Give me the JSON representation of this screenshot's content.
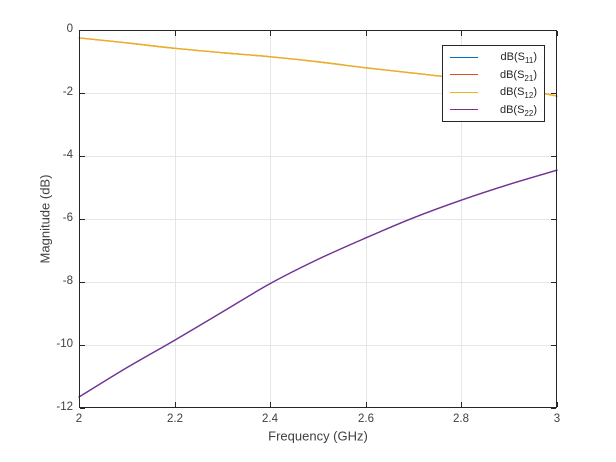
{
  "figure": {
    "background_color": "#ffffff"
  },
  "axes": {
    "xlabel": "Frequency (GHz)",
    "ylabel": "Magnitude (dB)",
    "xlim": [
      2,
      3
    ],
    "ylim": [
      -12,
      0
    ],
    "xticks": [
      2,
      2.2,
      2.4,
      2.6,
      2.8,
      3
    ],
    "xtick_labels": [
      "2",
      "2.2",
      "2.4",
      "2.6",
      "2.8",
      "3"
    ],
    "yticks": [
      0,
      -2,
      -4,
      -6,
      -8,
      -10,
      -12
    ],
    "ytick_labels": [
      "0",
      "-2",
      "-4",
      "-6",
      "-8",
      "-10",
      "-12"
    ],
    "grid": true,
    "box": true,
    "spine_color": "#262626",
    "grid_color": "#e6e6e6",
    "tick_color": "#262626",
    "text_color": "#404040"
  },
  "chart_data": {
    "type": "line",
    "title": "",
    "xlabel": "Frequency (GHz)",
    "ylabel": "Magnitude (dB)",
    "xlim": [
      2,
      3
    ],
    "ylim": [
      -12,
      0
    ],
    "grid": true,
    "legend_position": "northeast",
    "x": [
      2.0,
      2.1,
      2.2,
      2.3,
      2.4,
      2.5,
      2.6,
      2.7,
      2.8,
      2.9,
      3.0
    ],
    "series": [
      {
        "name": "dB(S11)",
        "color": "#0072BD",
        "values": [
          -11.65,
          -10.72,
          -9.85,
          -8.95,
          -8.05,
          -7.28,
          -6.6,
          -5.96,
          -5.4,
          -4.9,
          -4.45
        ]
      },
      {
        "name": "dB(S21)",
        "color": "#D95319",
        "values": [
          -0.25,
          -0.41,
          -0.58,
          -0.72,
          -0.85,
          -1.01,
          -1.2,
          -1.37,
          -1.55,
          -1.8,
          -2.1
        ]
      },
      {
        "name": "dB(S12)",
        "color": "#EDB120",
        "values": [
          -0.25,
          -0.41,
          -0.58,
          -0.72,
          -0.85,
          -1.01,
          -1.2,
          -1.37,
          -1.55,
          -1.8,
          -2.1
        ]
      },
      {
        "name": "dB(S22)",
        "color": "#7E2F8E",
        "values": [
          -11.65,
          -10.72,
          -9.85,
          -8.95,
          -8.05,
          -7.28,
          -6.6,
          -5.96,
          -5.4,
          -4.9,
          -4.45
        ]
      }
    ],
    "note": "dB(S11) trace coincides with dB(S22); dB(S21) trace coincides with dB(S12)"
  },
  "legend": {
    "border_color": "#262626",
    "background": "#ffffff",
    "entries": [
      {
        "prefix": "dB(S",
        "sub": "11",
        "suffix": ")",
        "color": "#0072BD"
      },
      {
        "prefix": "dB(S",
        "sub": "21",
        "suffix": ")",
        "color": "#D95319"
      },
      {
        "prefix": "dB(S",
        "sub": "12",
        "suffix": ")",
        "color": "#EDB120"
      },
      {
        "prefix": "dB(S",
        "sub": "22",
        "suffix": ")",
        "color": "#7E2F8E"
      }
    ]
  }
}
